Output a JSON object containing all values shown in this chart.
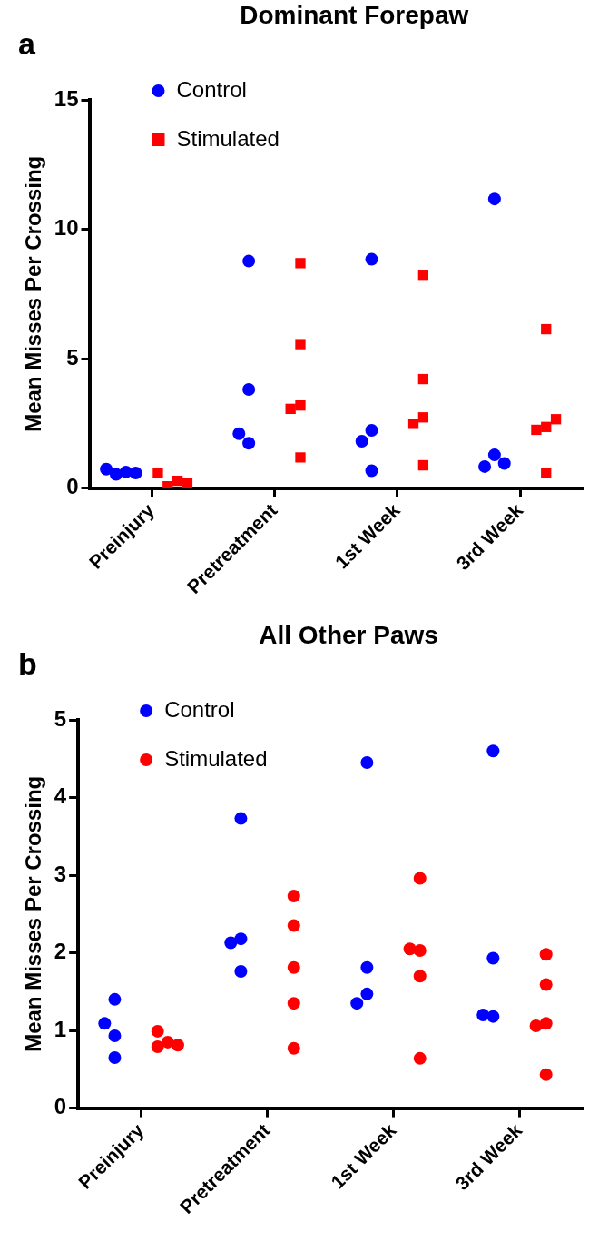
{
  "chart_data": [
    {
      "type": "scatter",
      "title": "Dominant Forepaw",
      "annotations": [
        "a"
      ],
      "ylabel": "Mean Misses Per Crossing",
      "categories": [
        "Preinjury",
        "Pretreatment",
        "1st Week",
        "3rd Week"
      ],
      "ylim": [
        0,
        15
      ],
      "yticks": [
        0,
        5,
        10,
        15
      ],
      "legend": "top left",
      "series": [
        {
          "name": "Control",
          "color": "#0000ff",
          "marker": "circle",
          "x": [
            "Preinjury",
            "Preinjury",
            "Preinjury",
            "Preinjury",
            "Pretreatment",
            "Pretreatment",
            "Pretreatment",
            "Pretreatment",
            "1st Week",
            "1st Week",
            "1st Week",
            "1st Week",
            "3rd Week",
            "3rd Week",
            "3rd Week",
            "3rd Week"
          ],
          "values": [
            0.62,
            0.53,
            0.58,
            0.73,
            8.77,
            3.81,
            1.73,
            2.1,
            8.84,
            2.23,
            1.81,
            0.67,
            11.17,
            1.28,
            0.83,
            0.95
          ]
        },
        {
          "name": "Stimulated",
          "color": "#ff0000",
          "marker": "square",
          "x": [
            "Preinjury",
            "Preinjury",
            "Preinjury",
            "Preinjury",
            "Pretreatment",
            "Pretreatment",
            "Pretreatment",
            "Pretreatment",
            "Pretreatment",
            "1st Week",
            "1st Week",
            "1st Week",
            "1st Week",
            "1st Week",
            "3rd Week",
            "3rd Week",
            "3rd Week",
            "3rd Week",
            "3rd Week"
          ],
          "values": [
            0.28,
            0.07,
            0.2,
            0.58,
            8.69,
            5.56,
            3.19,
            3.06,
            1.18,
            8.24,
            4.21,
            2.73,
            2.48,
            0.88,
            6.14,
            2.36,
            2.25,
            2.66,
            0.57
          ]
        }
      ]
    },
    {
      "type": "scatter",
      "title": "All Other Paws",
      "annotations": [
        "b"
      ],
      "ylabel": "Mean Misses Per Crossing",
      "categories": [
        "Preinjury",
        "Pretreatment",
        "1st Week",
        "3rd Week"
      ],
      "ylim": [
        0,
        5
      ],
      "yticks": [
        0,
        1,
        2,
        3,
        4,
        5
      ],
      "legend": "top left",
      "series": [
        {
          "name": "Control",
          "color": "#0000ff",
          "marker": "circle",
          "x": [
            "Preinjury",
            "Preinjury",
            "Preinjury",
            "Preinjury",
            "Pretreatment",
            "Pretreatment",
            "Pretreatment",
            "Pretreatment",
            "1st Week",
            "1st Week",
            "1st Week",
            "1st Week",
            "3rd Week",
            "3rd Week",
            "3rd Week",
            "3rd Week"
          ],
          "values": [
            1.4,
            0.65,
            0.93,
            1.09,
            3.73,
            2.18,
            2.13,
            1.76,
            4.45,
            1.81,
            1.47,
            1.35,
            4.6,
            1.93,
            1.18,
            1.2
          ]
        },
        {
          "name": "Stimulated",
          "color": "#ff0000",
          "marker": "circle",
          "x": [
            "Preinjury",
            "Preinjury",
            "Preinjury",
            "Preinjury",
            "Pretreatment",
            "Pretreatment",
            "Pretreatment",
            "Pretreatment",
            "Pretreatment",
            "1st Week",
            "1st Week",
            "1st Week",
            "1st Week",
            "1st Week",
            "3rd Week",
            "3rd Week",
            "3rd Week",
            "3rd Week",
            "3rd Week"
          ],
          "values": [
            0.85,
            0.79,
            0.81,
            0.99,
            2.73,
            2.35,
            1.81,
            1.35,
            0.77,
            2.96,
            2.03,
            2.05,
            1.7,
            0.64,
            1.98,
            1.59,
            1.09,
            1.06,
            0.43
          ]
        }
      ]
    }
  ]
}
